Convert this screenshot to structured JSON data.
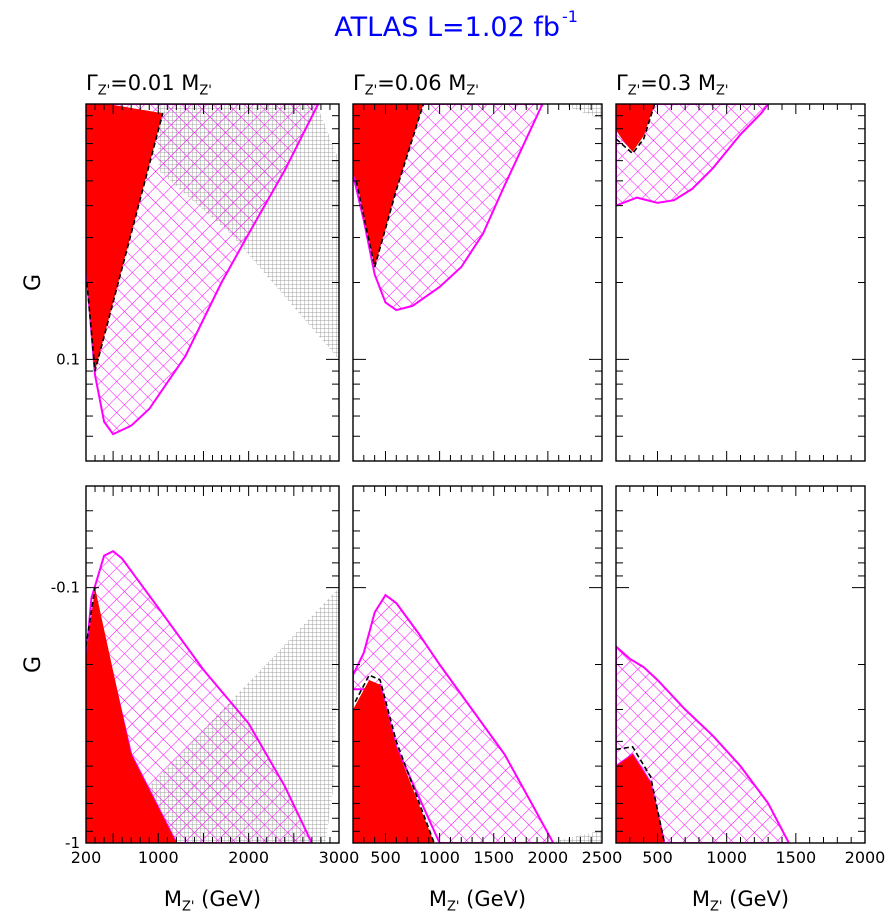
{
  "title": "ATLAS L=1.02 fb",
  "title_superscript": "-1",
  "colors": {
    "excluded_fill": "#ff0000",
    "allowed_hatch": "#ff00ff",
    "grey_hatch": "#8c8c8c",
    "title": "#0000ff",
    "frame": "#000000"
  },
  "chart_data": [
    {
      "type": "area",
      "position": "top-left",
      "panel_title": {
        "main": "Γ",
        "sub": "Z'",
        "rest": "=0.01 M",
        "sub2": "Z'"
      },
      "ylabel": "G",
      "yscale": "log",
      "xlim": [
        200,
        3000
      ],
      "ylim": [
        0.04,
        1
      ],
      "y_ticks": [
        0.1
      ],
      "y_tick_labels": [
        "0.1"
      ],
      "x_ticks": [],
      "x_tick_labels": [],
      "series": [
        {
          "name": "",
          "style": "grey-hatch",
          "points": [
            [
              1000,
              1
            ],
            [
              2750,
              1
            ],
            [
              3000,
              0.6
            ],
            [
              3000,
              0.1
            ],
            [
              1800,
              0.31
            ],
            [
              1000,
              0.55
            ]
          ]
        },
        {
          "name": "",
          "style": "magenta-hatch",
          "points": [
            [
              200,
              0.23
            ],
            [
              300,
              0.087
            ],
            [
              400,
              0.057
            ],
            [
              500,
              0.051
            ],
            [
              700,
              0.055
            ],
            [
              900,
              0.064
            ],
            [
              1300,
              0.103
            ],
            [
              1700,
              0.2
            ],
            [
              2000,
              0.31
            ],
            [
              2400,
              0.55
            ],
            [
              2770,
              1
            ],
            [
              280,
              1
            ],
            [
              200,
              1
            ]
          ]
        },
        {
          "name": "",
          "style": "red-fill",
          "points": [
            [
              200,
              1
            ],
            [
              440,
              1
            ],
            [
              1050,
              0.92
            ],
            [
              300,
              0.09
            ],
            [
              200,
              0.23
            ]
          ]
        },
        {
          "name": "",
          "style": "black-dashed",
          "points": [
            [
              210,
              0.2
            ],
            [
              300,
              0.09
            ],
            [
              1050,
              0.92
            ]
          ]
        }
      ]
    },
    {
      "type": "area",
      "position": "top-middle",
      "panel_title": {
        "main": "Γ",
        "sub": "Z'",
        "rest": "=0.06 M",
        "sub2": "Z'"
      },
      "ylabel": "",
      "yscale": "log",
      "xlim": [
        200,
        2500
      ],
      "ylim": [
        0.04,
        1
      ],
      "y_ticks": [],
      "y_tick_labels": [],
      "x_ticks": [],
      "x_tick_labels": [],
      "series": [
        {
          "name": "",
          "style": "grey-hatch",
          "points": [
            [
              2120,
              1
            ],
            [
              2500,
              1
            ],
            [
              2500,
              0.87
            ]
          ]
        },
        {
          "name": "",
          "style": "magenta-hatch",
          "points": [
            [
              200,
              0.53
            ],
            [
              300,
              0.35
            ],
            [
              400,
              0.215
            ],
            [
              500,
              0.167
            ],
            [
              600,
              0.156
            ],
            [
              750,
              0.162
            ],
            [
              1000,
              0.192
            ],
            [
              1200,
              0.23
            ],
            [
              1400,
              0.31
            ],
            [
              1600,
              0.48
            ],
            [
              1950,
              1
            ],
            [
              200,
              1
            ]
          ]
        },
        {
          "name": "",
          "style": "red-fill",
          "points": [
            [
              200,
              1
            ],
            [
              850,
              1
            ],
            [
              600,
              0.46
            ],
            [
              400,
              0.23
            ],
            [
              250,
              0.46
            ],
            [
              200,
              0.54
            ]
          ]
        },
        {
          "name": "",
          "style": "black-dashed",
          "points": [
            [
              230,
              0.5
            ],
            [
              400,
              0.23
            ],
            [
              600,
              0.46
            ],
            [
              850,
              1
            ]
          ]
        }
      ]
    },
    {
      "type": "area",
      "position": "top-right",
      "panel_title": {
        "main": "Γ",
        "sub": "Z'",
        "rest": "=0.3 M",
        "sub2": "Z'"
      },
      "ylabel": "",
      "yscale": "log",
      "xlim": [
        200,
        2000
      ],
      "ylim": [
        0.04,
        1
      ],
      "y_ticks": [],
      "y_tick_labels": [],
      "x_ticks": [],
      "x_tick_labels": [],
      "series": [
        {
          "name": "",
          "style": "magenta-hatch",
          "points": [
            [
              200,
              0.4
            ],
            [
              350,
              0.43
            ],
            [
              500,
              0.41
            ],
            [
              620,
              0.42
            ],
            [
              750,
              0.465
            ],
            [
              900,
              0.56
            ],
            [
              1100,
              0.76
            ],
            [
              1250,
              0.92
            ],
            [
              1300,
              1
            ],
            [
              200,
              1
            ]
          ]
        },
        {
          "name": "",
          "style": "red-fill",
          "points": [
            [
              200,
              1
            ],
            [
              480,
              1
            ],
            [
              400,
              0.75
            ],
            [
              320,
              0.65
            ],
            [
              250,
              0.72
            ],
            [
              200,
              0.79
            ]
          ]
        },
        {
          "name": "",
          "style": "black-dashed",
          "points": [
            [
              200,
              0.73
            ],
            [
              320,
              0.64
            ],
            [
              400,
              0.73
            ],
            [
              480,
              1
            ]
          ]
        }
      ]
    },
    {
      "type": "area",
      "position": "bottom-left",
      "panel_title": null,
      "ylabel": "G",
      "yscale": "log",
      "xlim": [
        200,
        3000
      ],
      "ylim": [
        -1,
        -0.04
      ],
      "y_ticks": [
        -0.1,
        -1
      ],
      "y_tick_labels": [
        "-0.1",
        "-1"
      ],
      "x_ticks": [
        200,
        1000,
        2000,
        3000
      ],
      "x_tick_labels": [
        "200",
        "1000",
        "2000",
        "3000"
      ],
      "xlabel": {
        "main": "M",
        "sub": "Z'",
        "rest": " (GeV)"
      },
      "series": [
        {
          "name": "",
          "style": "grey-hatch",
          "points": [
            [
              300,
              -1
            ],
            [
              2850,
              -1
            ],
            [
              2950,
              -0.56
            ],
            [
              3000,
              -0.1
            ],
            [
              1600,
              -0.33
            ]
          ]
        },
        {
          "name": "",
          "style": "magenta-hatch",
          "points": [
            [
              200,
              -0.19
            ],
            [
              260,
              -0.11
            ],
            [
              400,
              -0.075
            ],
            [
              500,
              -0.072
            ],
            [
              600,
              -0.077
            ],
            [
              1000,
              -0.12
            ],
            [
              1500,
              -0.21
            ],
            [
              2000,
              -0.34
            ],
            [
              2400,
              -0.6
            ],
            [
              2700,
              -1
            ],
            [
              1200,
              -1
            ],
            [
              700,
              -0.45
            ],
            [
              300,
              -0.11
            ]
          ]
        },
        {
          "name": "",
          "style": "red-fill",
          "points": [
            [
              200,
              -0.19
            ],
            [
              300,
              -0.1
            ],
            [
              700,
              -0.45
            ],
            [
              1200,
              -1
            ],
            [
              200,
              -1
            ]
          ]
        },
        {
          "name": "",
          "style": "black-dashed",
          "points": [
            [
              200,
              -0.17
            ],
            [
              300,
              -0.1
            ]
          ]
        }
      ]
    },
    {
      "type": "area",
      "position": "bottom-middle",
      "panel_title": null,
      "ylabel": "",
      "yscale": "log",
      "xlim": [
        200,
        2500
      ],
      "ylim": [
        -1,
        -0.04
      ],
      "y_ticks": [],
      "y_tick_labels": [],
      "x_ticks": [
        500,
        1000,
        1500,
        2000,
        2500
      ],
      "x_tick_labels": [
        "500",
        "1000",
        "1500",
        "2000",
        "2500"
      ],
      "xlabel": {
        "main": "M",
        "sub": "Z'",
        "rest": " (GeV)"
      },
      "series": [
        {
          "name": "",
          "style": "grey-hatch",
          "points": [
            [
              2000,
              -1
            ],
            [
              2500,
              -1
            ],
            [
              2500,
              -0.89
            ]
          ]
        },
        {
          "name": "",
          "style": "magenta-hatch",
          "points": [
            [
              200,
              -0.22
            ],
            [
              300,
              -0.18
            ],
            [
              400,
              -0.125
            ],
            [
              500,
              -0.107
            ],
            [
              600,
              -0.115
            ],
            [
              800,
              -0.15
            ],
            [
              1000,
              -0.2
            ],
            [
              1300,
              -0.3
            ],
            [
              1600,
              -0.45
            ],
            [
              1850,
              -0.7
            ],
            [
              2050,
              -1
            ],
            [
              1000,
              -1
            ],
            [
              600,
              -0.42
            ],
            [
              450,
              -0.24
            ],
            [
              300,
              -0.25
            ],
            [
              200,
              -0.25
            ]
          ]
        },
        {
          "name": "",
          "style": "red-fill",
          "points": [
            [
              200,
              -0.3
            ],
            [
              350,
              -0.23
            ],
            [
              450,
              -0.24
            ],
            [
              600,
              -0.42
            ],
            [
              950,
              -1
            ],
            [
              200,
              -1
            ]
          ]
        },
        {
          "name": "",
          "style": "black-dashed",
          "points": [
            [
              220,
              -0.28
            ],
            [
              350,
              -0.22
            ],
            [
              450,
              -0.23
            ],
            [
              600,
              -0.4
            ],
            [
              950,
              -1
            ]
          ]
        }
      ]
    },
    {
      "type": "area",
      "position": "bottom-right",
      "panel_title": null,
      "ylabel": "",
      "yscale": "log",
      "xlim": [
        200,
        2000
      ],
      "ylim": [
        -1,
        -0.04
      ],
      "y_ticks": [],
      "y_tick_labels": [],
      "x_ticks": [
        500,
        1000,
        1500,
        2000
      ],
      "x_tick_labels": [
        "500",
        "1000",
        "1500",
        "2000"
      ],
      "xlabel": {
        "main": "M",
        "sub": "Z'",
        "rest": " (GeV)"
      },
      "series": [
        {
          "name": "",
          "style": "magenta-hatch",
          "points": [
            [
              200,
              -0.17
            ],
            [
              300,
              -0.19
            ],
            [
              400,
              -0.205
            ],
            [
              500,
              -0.23
            ],
            [
              700,
              -0.3
            ],
            [
              900,
              -0.38
            ],
            [
              1100,
              -0.5
            ],
            [
              1300,
              -0.7
            ],
            [
              1450,
              -1
            ],
            [
              550,
              -1
            ],
            [
              450,
              -0.58
            ],
            [
              320,
              -0.45
            ],
            [
              200,
              -0.5
            ]
          ]
        },
        {
          "name": "",
          "style": "red-fill",
          "points": [
            [
              200,
              -0.5
            ],
            [
              320,
              -0.45
            ],
            [
              450,
              -0.58
            ],
            [
              550,
              -1
            ],
            [
              200,
              -1
            ]
          ]
        },
        {
          "name": "",
          "style": "black-dashed",
          "points": [
            [
              200,
              -0.43
            ],
            [
              320,
              -0.42
            ],
            [
              450,
              -0.55
            ],
            [
              550,
              -1
            ]
          ]
        }
      ]
    }
  ]
}
